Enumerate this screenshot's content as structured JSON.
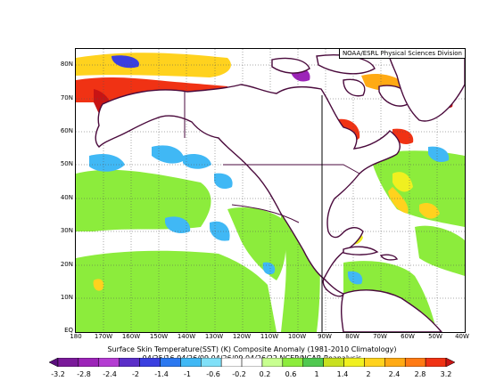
{
  "credit": "NOAA/ESRL Physical Sciences Division",
  "title": "Surface Skin Temperature(SST) (K) Composite Anomaly (1981-2010 Climatology)",
  "dates": "04/25/16 04/26/09 04/26/09 04/26/22",
  "source": "NCEP/NCAR Reanalysis",
  "map": {
    "lat_labels": [
      "80N",
      "70N",
      "60N",
      "50N",
      "40N",
      "30N",
      "20N",
      "10N",
      "EQ"
    ],
    "lon_labels": [
      "180",
      "170W",
      "160W",
      "150W",
      "140W",
      "130W",
      "120W",
      "110W",
      "100W",
      "90W",
      "80W",
      "70W",
      "60W",
      "50W",
      "40W"
    ],
    "lat_range": [
      0,
      85
    ],
    "lon_range": [
      -180,
      -40
    ]
  },
  "colorbar": {
    "labels": [
      "-3.2",
      "-2.8",
      "-2.4",
      "-2",
      "-1.4",
      "-1",
      "-0.6",
      "-0.2",
      "0.2",
      "0.6",
      "1",
      "1.4",
      "2",
      "2.4",
      "2.8",
      "3.2"
    ],
    "colors": [
      "#5a0f7d",
      "#7a1a9a",
      "#9c24b8",
      "#b43cd2",
      "#5b2ec8",
      "#3a3fe0",
      "#2a78f0",
      "#40b8f5",
      "#80e0f8",
      "#ffffff",
      "#ffffff",
      "#c8ff90",
      "#8cec3c",
      "#50c850",
      "#c8e020",
      "#f0f020",
      "#ffd21e",
      "#ffaa14",
      "#ff7a14",
      "#f03214",
      "#c81414"
    ]
  }
}
